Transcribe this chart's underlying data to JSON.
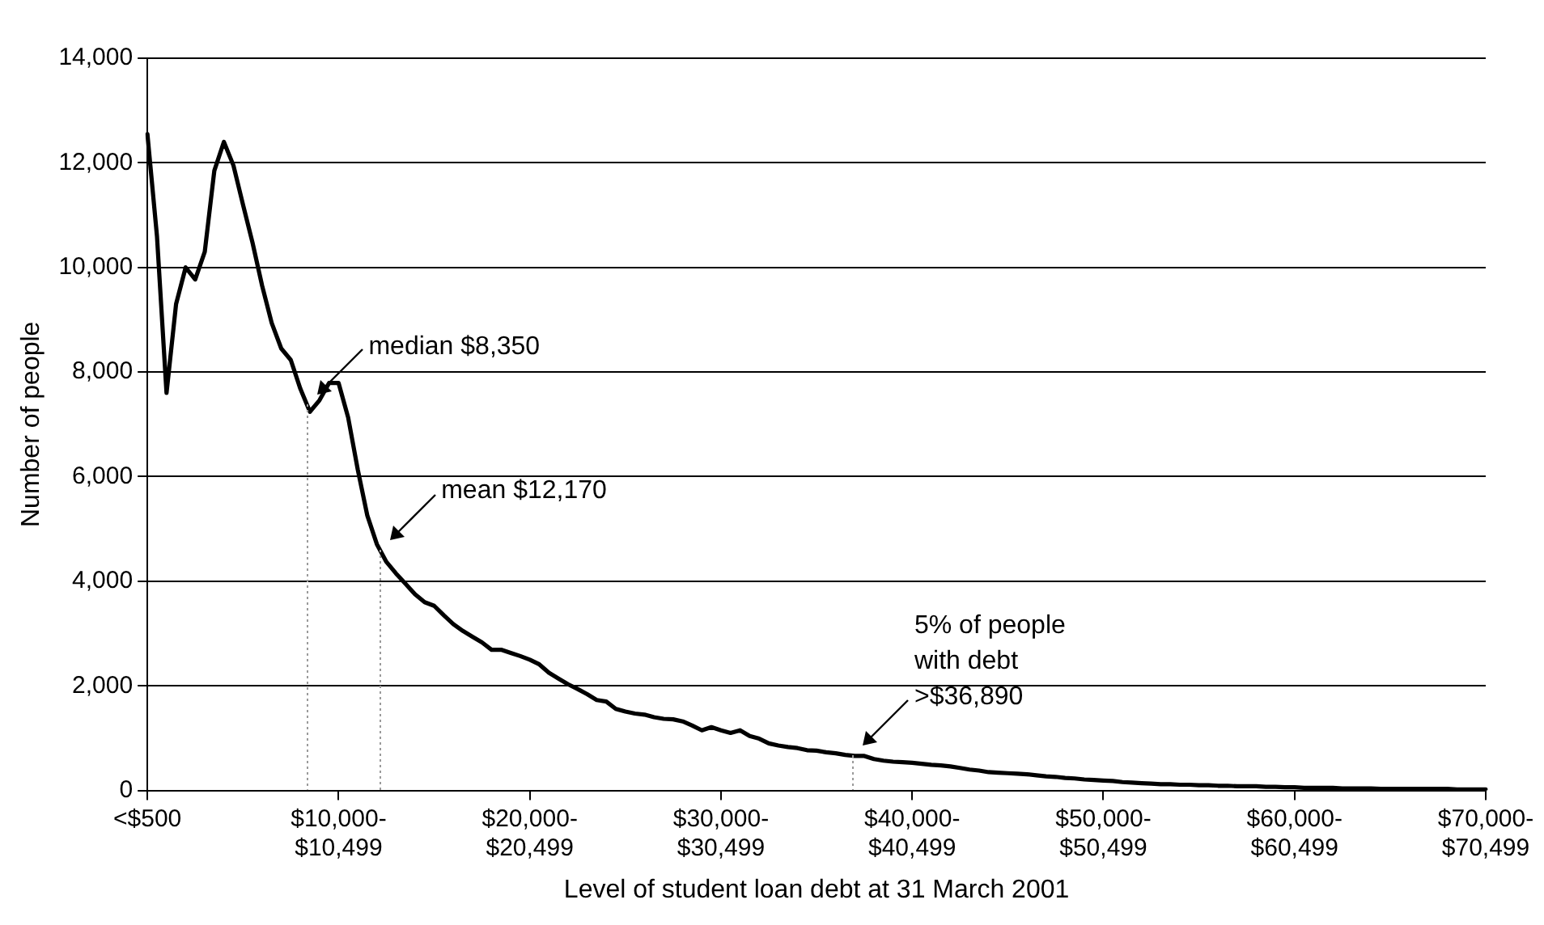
{
  "chart_data": {
    "type": "line",
    "xlabel": "Level of student loan debt at 31 March 2001",
    "ylabel": "Number of people",
    "categories": [
      "<$500",
      null,
      null,
      null,
      null,
      null,
      null,
      null,
      null,
      null,
      null,
      null,
      null,
      null,
      null,
      null,
      null,
      null,
      null,
      null,
      "$10,000-$10,499",
      null,
      null,
      null,
      null,
      null,
      null,
      null,
      null,
      null,
      null,
      null,
      null,
      null,
      null,
      null,
      null,
      null,
      null,
      null,
      "$20,000-$20,499",
      null,
      null,
      null,
      null,
      null,
      null,
      null,
      null,
      null,
      null,
      null,
      null,
      null,
      null,
      null,
      null,
      null,
      null,
      null,
      "$30,000-$30,499",
      null,
      null,
      null,
      null,
      null,
      null,
      null,
      null,
      null,
      null,
      null,
      null,
      null,
      null,
      null,
      null,
      null,
      null,
      null,
      "$40,000-$40,499",
      null,
      null,
      null,
      null,
      null,
      null,
      null,
      null,
      null,
      null,
      null,
      null,
      null,
      null,
      null,
      null,
      null,
      null,
      null,
      "$50,000-$50,499",
      null,
      null,
      null,
      null,
      null,
      null,
      null,
      null,
      null,
      null,
      null,
      null,
      null,
      null,
      null,
      null,
      null,
      null,
      null,
      "$60,000-$60,499",
      null,
      null,
      null,
      null,
      null,
      null,
      null,
      null,
      null,
      null,
      null,
      null,
      null,
      null,
      null,
      null,
      null,
      null,
      null,
      "$70,000-$70,499"
    ],
    "series": [
      {
        "color": "#000000",
        "values": [
          12550,
          10600,
          7600,
          9300,
          10000,
          9770,
          10300,
          11850,
          12400,
          11950,
          11200,
          10470,
          9650,
          8940,
          8450,
          8230,
          7680,
          7240,
          7460,
          7790,
          7790,
          7130,
          6140,
          5260,
          4710,
          4370,
          4150,
          3950,
          3750,
          3600,
          3530,
          3350,
          3180,
          3050,
          2940,
          2830,
          2690,
          2690,
          2630,
          2570,
          2500,
          2410,
          2250,
          2140,
          2030,
          1940,
          1840,
          1730,
          1700,
          1560,
          1510,
          1470,
          1450,
          1400,
          1370,
          1360,
          1320,
          1240,
          1150,
          1210,
          1150,
          1100,
          1150,
          1040,
          990,
          900,
          860,
          830,
          810,
          770,
          760,
          730,
          710,
          680,
          660,
          660,
          600,
          570,
          550,
          540,
          530,
          510,
          490,
          480,
          460,
          430,
          400,
          380,
          350,
          340,
          330,
          320,
          310,
          290,
          270,
          260,
          240,
          230,
          210,
          200,
          190,
          180,
          160,
          150,
          140,
          130,
          120,
          120,
          110,
          110,
          100,
          100,
          90,
          90,
          80,
          80,
          80,
          70,
          70,
          60,
          60,
          50,
          50,
          50,
          50,
          40,
          40,
          40,
          40,
          30,
          30,
          30,
          30,
          30,
          30,
          30,
          30,
          20,
          20,
          20,
          20
        ]
      }
    ],
    "ylim": [
      0,
      14000
    ],
    "yticks": [
      {
        "value": 0,
        "label": "0"
      },
      {
        "value": 2000,
        "label": "2,000"
      },
      {
        "value": 4000,
        "label": "4,000"
      },
      {
        "value": 6000,
        "label": "6,000"
      },
      {
        "value": 8000,
        "label": "8,000"
      },
      {
        "value": 10000,
        "label": "10,000"
      },
      {
        "value": 12000,
        "label": "12,000"
      },
      {
        "value": 14000,
        "label": "14,000"
      }
    ],
    "annotations": [
      "median $8,350",
      "mean $12,170",
      "5% of people with debt >$36,890"
    ],
    "grid": "y",
    "marker": "none",
    "line_style": "solid"
  }
}
